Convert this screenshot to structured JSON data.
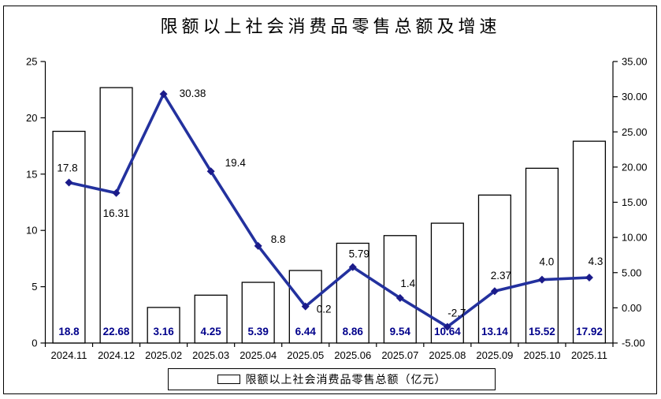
{
  "title": "限额以上社会消费品零售总额及增速",
  "legend": {
    "bar_label": "限额以上社会消费品零售总额（亿元）"
  },
  "chart_data": {
    "type": "bar",
    "subtype": "combo-bar-line-dual-axis",
    "title": "限额以上社会消费品零售总额及增速",
    "categories": [
      "2024.11",
      "2024.12",
      "2025.02",
      "2025.03",
      "2025.04",
      "2025.05",
      "2025.06",
      "2025.07",
      "2025.08",
      "2025.09",
      "2025.10",
      "2025.11"
    ],
    "series": [
      {
        "name": "限额以上社会消费品零售总额（亿元）",
        "type": "bar",
        "axis": "left",
        "values": [
          18.8,
          22.68,
          3.16,
          4.25,
          5.39,
          6.44,
          8.86,
          9.54,
          10.64,
          13.14,
          15.52,
          17.92
        ],
        "labels": [
          "18.8",
          "22.68",
          "3.16",
          "4.25",
          "5.39",
          "6.44",
          "8.86",
          "9.54",
          "10.64",
          "13.14",
          "15.52",
          "17.92"
        ]
      },
      {
        "name": "增速",
        "type": "line",
        "axis": "right",
        "values": [
          17.8,
          16.31,
          30.38,
          19.4,
          8.8,
          0.2,
          5.79,
          1.4,
          -2.7,
          2.37,
          4.0,
          4.3
        ],
        "labels": [
          "17.8",
          "16.31",
          "30.38",
          "19.4",
          "8.8",
          "0.2",
          "5.79",
          "1.4",
          "-2.7",
          "2.37",
          "4.0",
          "4.3"
        ]
      }
    ],
    "left_axis": {
      "min": 0,
      "max": 25,
      "ticks": [
        "0",
        "5",
        "10",
        "15",
        "20",
        "25"
      ]
    },
    "right_axis": {
      "min": -5,
      "max": 35,
      "ticks": [
        "-5.00",
        "0.00",
        "5.00",
        "10.00",
        "15.00",
        "20.00",
        "25.00",
        "30.00",
        "35.00"
      ]
    },
    "grid": "off",
    "legend_position": "bottom",
    "colors": {
      "line": "#23319E",
      "marker": "#1B1B8A",
      "bar_fill": "#FFFFFF",
      "bar_border": "#000000",
      "bar_value_label": "#00008B",
      "point_label": "#000000",
      "axis": "#000000"
    }
  }
}
